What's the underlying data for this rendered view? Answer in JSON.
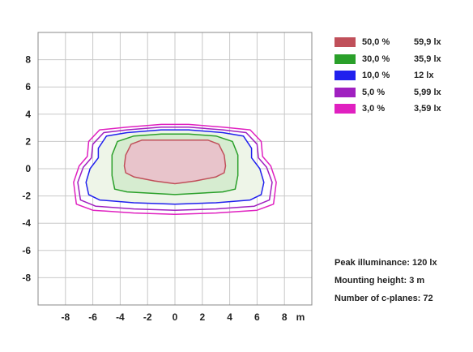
{
  "chart_data": {
    "type": "isolux-contour",
    "title": "",
    "xlabel": "",
    "x_unit": "m",
    "ylabel": "",
    "xlim": [
      -10,
      10
    ],
    "ylim": [
      -10,
      10
    ],
    "x_tick_labels": [
      "-8",
      "-6",
      "-4",
      "-2",
      "0",
      "2",
      "4",
      "6",
      "8"
    ],
    "y_tick_labels": [
      "8",
      "6",
      "4",
      "2",
      "0",
      "-2",
      "-4",
      "-6",
      "-8"
    ],
    "grid": true,
    "legend_position": "top-right",
    "series": [
      {
        "percent_label": "50,0 %",
        "lux_label": "59,9 lx",
        "color": "#c0505a",
        "fill": "#e8c4cb",
        "points": [
          [
            -2.4,
            2.1
          ],
          [
            2.4,
            2.1
          ],
          [
            3.2,
            1.8
          ],
          [
            3.6,
            1.0
          ],
          [
            3.7,
            0.2
          ],
          [
            3.6,
            -0.3
          ],
          [
            3.0,
            -0.6
          ],
          [
            1.5,
            -0.9
          ],
          [
            0,
            -1.1
          ],
          [
            -1.5,
            -0.9
          ],
          [
            -3.0,
            -0.6
          ],
          [
            -3.6,
            -0.3
          ],
          [
            -3.7,
            0.2
          ],
          [
            -3.6,
            1.0
          ],
          [
            -3.2,
            1.8
          ]
        ]
      },
      {
        "percent_label": "30,0 %",
        "lux_label": "35,9 lx",
        "color": "#2aa02a",
        "fill": "#d6ecd0",
        "points": [
          [
            -3.0,
            2.4
          ],
          [
            -1,
            2.55
          ],
          [
            1,
            2.55
          ],
          [
            3.0,
            2.4
          ],
          [
            4.2,
            2.0
          ],
          [
            4.6,
            1.0
          ],
          [
            4.6,
            -0.5
          ],
          [
            4.4,
            -1.5
          ],
          [
            3.5,
            -1.7
          ],
          [
            0,
            -1.9
          ],
          [
            -3.5,
            -1.7
          ],
          [
            -4.4,
            -1.5
          ],
          [
            -4.6,
            -0.5
          ],
          [
            -4.6,
            1.0
          ],
          [
            -4.2,
            2.0
          ]
        ]
      },
      {
        "percent_label": "10,0 %",
        "lux_label": "12 lx",
        "color": "#2020ee",
        "fill": "#eef5e8",
        "points": [
          [
            -3.5,
            2.65
          ],
          [
            -1,
            2.85
          ],
          [
            1,
            2.85
          ],
          [
            3.5,
            2.65
          ],
          [
            5.0,
            2.4
          ],
          [
            5.6,
            1.5
          ],
          [
            5.6,
            0.8
          ],
          [
            6.2,
            0.0
          ],
          [
            6.5,
            -1.0
          ],
          [
            6.3,
            -1.9
          ],
          [
            5.5,
            -2.3
          ],
          [
            3,
            -2.5
          ],
          [
            0,
            -2.6
          ],
          [
            -3,
            -2.5
          ],
          [
            -5.5,
            -2.3
          ],
          [
            -6.3,
            -1.9
          ],
          [
            -6.5,
            -1.0
          ],
          [
            -6.2,
            0.0
          ],
          [
            -5.6,
            0.8
          ],
          [
            -5.6,
            1.5
          ],
          [
            -5.0,
            2.4
          ]
        ]
      },
      {
        "percent_label": "5,0 %",
        "lux_label": "5,99 lx",
        "color": "#a020c0",
        "fill": "none",
        "points": [
          [
            -3.5,
            2.85
          ],
          [
            -1,
            3.05
          ],
          [
            1,
            3.05
          ],
          [
            3.5,
            2.85
          ],
          [
            5.2,
            2.65
          ],
          [
            6.0,
            1.8
          ],
          [
            6.1,
            0.8
          ],
          [
            6.7,
            0.1
          ],
          [
            7.1,
            -1.0
          ],
          [
            6.9,
            -2.3
          ],
          [
            5.8,
            -2.75
          ],
          [
            3,
            -2.95
          ],
          [
            0,
            -3.05
          ],
          [
            -3,
            -2.95
          ],
          [
            -5.8,
            -2.75
          ],
          [
            -6.9,
            -2.3
          ],
          [
            -7.1,
            -1.0
          ],
          [
            -6.7,
            0.1
          ],
          [
            -6.1,
            0.8
          ],
          [
            -6.0,
            1.8
          ],
          [
            -5.2,
            2.65
          ]
        ]
      },
      {
        "percent_label": "3,0 %",
        "lux_label": "3,59 lx",
        "color": "#e020c0",
        "fill": "none",
        "points": [
          [
            -3.5,
            3.05
          ],
          [
            -1,
            3.25
          ],
          [
            1,
            3.25
          ],
          [
            3.5,
            3.05
          ],
          [
            5.5,
            2.85
          ],
          [
            6.3,
            2.0
          ],
          [
            6.4,
            0.9
          ],
          [
            7.0,
            0.2
          ],
          [
            7.4,
            -1.0
          ],
          [
            7.2,
            -2.6
          ],
          [
            6.0,
            -3.05
          ],
          [
            3,
            -3.25
          ],
          [
            0,
            -3.35
          ],
          [
            -3,
            -3.25
          ],
          [
            -6.0,
            -3.05
          ],
          [
            -7.2,
            -2.6
          ],
          [
            -7.4,
            -1.0
          ],
          [
            -7.0,
            0.2
          ],
          [
            -6.4,
            0.9
          ],
          [
            -6.3,
            2.0
          ],
          [
            -5.5,
            2.85
          ]
        ]
      }
    ],
    "info": [
      "Peak illuminance: 120 lx",
      "Mounting height: 3 m",
      "Number of c-planes: 72"
    ]
  }
}
